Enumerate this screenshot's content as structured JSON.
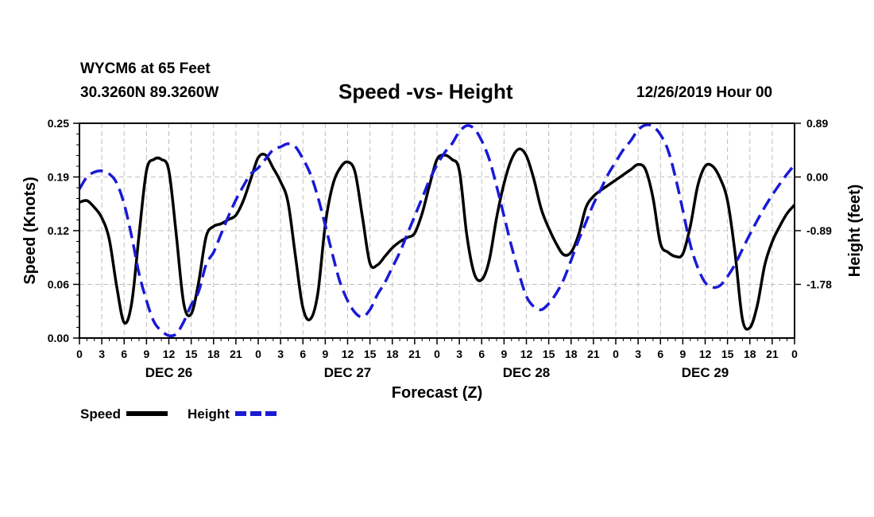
{
  "header": {
    "station": "WYCM6 at 65 Feet",
    "coordinates": "30.3260N 89.3260W",
    "title": "Speed -vs- Height",
    "run_time": "12/26/2019 Hour 00"
  },
  "chart_data": {
    "type": "line",
    "title": "Speed -vs- Height",
    "xlabel": "Forecast (Z)",
    "ylabel": "Speed (Knots)",
    "ylabel_right": "Height (feet)",
    "x_unit": "hours from 12/26/2019 00Z",
    "xlim": [
      0,
      96
    ],
    "ylim": [
      0,
      0.25
    ],
    "ylim_right": [
      -2.67,
      0.89
    ],
    "x_ticks": [
      0,
      3,
      6,
      9,
      12,
      15,
      18,
      21,
      24,
      27,
      30,
      33,
      36,
      39,
      42,
      45,
      48,
      51,
      54,
      57,
      60,
      63,
      66,
      69,
      72,
      75,
      78,
      81,
      84,
      87,
      90,
      93,
      96
    ],
    "x_tick_labels": [
      "0",
      "3",
      "6",
      "9",
      "12",
      "15",
      "18",
      "21",
      "0",
      "3",
      "6",
      "9",
      "12",
      "15",
      "18",
      "21",
      "0",
      "3",
      "6",
      "9",
      "12",
      "15",
      "18",
      "21",
      "0",
      "3",
      "6",
      "9",
      "12",
      "15",
      "18",
      "21",
      "0"
    ],
    "y_ticks": [
      0.0,
      0.0625,
      0.125,
      0.1875,
      0.25
    ],
    "y_tick_labels": [
      "0.00",
      "0.06",
      "0.12",
      "0.19",
      "0.25"
    ],
    "y_ticks_right": [
      0.89,
      0.0,
      -0.89,
      -1.78
    ],
    "y_tick_labels_right": [
      "0.89",
      "0.00",
      "-0.89",
      "-1.78"
    ],
    "date_labels": [
      {
        "x": 12,
        "label": "DEC 26"
      },
      {
        "x": 36,
        "label": "DEC 27"
      },
      {
        "x": 60,
        "label": "DEC 28"
      },
      {
        "x": 84,
        "label": "DEC 29"
      }
    ],
    "grid": true,
    "legend_position": "bottom-left",
    "series": [
      {
        "name": "Speed",
        "axis": "left",
        "color": "#000000",
        "dash": "solid",
        "points": [
          [
            0,
            0.158
          ],
          [
            1,
            0.16
          ],
          [
            2,
            0.152
          ],
          [
            3,
            0.14
          ],
          [
            4,
            0.115
          ],
          [
            5,
            0.06
          ],
          [
            6,
            0.018
          ],
          [
            7,
            0.04
          ],
          [
            8,
            0.12
          ],
          [
            9,
            0.195
          ],
          [
            10,
            0.208
          ],
          [
            11,
            0.208
          ],
          [
            12,
            0.195
          ],
          [
            13,
            0.12
          ],
          [
            14,
            0.04
          ],
          [
            15,
            0.028
          ],
          [
            16,
            0.065
          ],
          [
            17,
            0.118
          ],
          [
            18,
            0.13
          ],
          [
            19,
            0.133
          ],
          [
            20,
            0.138
          ],
          [
            21,
            0.143
          ],
          [
            22,
            0.16
          ],
          [
            23,
            0.185
          ],
          [
            24,
            0.21
          ],
          [
            25,
            0.213
          ],
          [
            26,
            0.198
          ],
          [
            27,
            0.182
          ],
          [
            28,
            0.158
          ],
          [
            29,
            0.095
          ],
          [
            30,
            0.035
          ],
          [
            31,
            0.022
          ],
          [
            32,
            0.052
          ],
          [
            33,
            0.132
          ],
          [
            34,
            0.178
          ],
          [
            35,
            0.198
          ],
          [
            36,
            0.205
          ],
          [
            37,
            0.193
          ],
          [
            38,
            0.14
          ],
          [
            39,
            0.087
          ],
          [
            40,
            0.085
          ],
          [
            41,
            0.095
          ],
          [
            42,
            0.105
          ],
          [
            43,
            0.112
          ],
          [
            44,
            0.117
          ],
          [
            45,
            0.122
          ],
          [
            46,
            0.145
          ],
          [
            47,
            0.178
          ],
          [
            48,
            0.208
          ],
          [
            49,
            0.213
          ],
          [
            50,
            0.208
          ],
          [
            51,
            0.195
          ],
          [
            52,
            0.12
          ],
          [
            53,
            0.075
          ],
          [
            54,
            0.068
          ],
          [
            55,
            0.09
          ],
          [
            56,
            0.14
          ],
          [
            57,
            0.18
          ],
          [
            58,
            0.208
          ],
          [
            59,
            0.22
          ],
          [
            60,
            0.212
          ],
          [
            61,
            0.185
          ],
          [
            62,
            0.15
          ],
          [
            63,
            0.128
          ],
          [
            64,
            0.11
          ],
          [
            65,
            0.097
          ],
          [
            66,
            0.1
          ],
          [
            67,
            0.12
          ],
          [
            68,
            0.152
          ],
          [
            69,
            0.165
          ],
          [
            70,
            0.172
          ],
          [
            71,
            0.178
          ],
          [
            72,
            0.184
          ],
          [
            73,
            0.19
          ],
          [
            74,
            0.196
          ],
          [
            75,
            0.202
          ],
          [
            76,
            0.196
          ],
          [
            77,
            0.163
          ],
          [
            78,
            0.11
          ],
          [
            79,
            0.1
          ],
          [
            80,
            0.095
          ],
          [
            81,
            0.098
          ],
          [
            82,
            0.13
          ],
          [
            83,
            0.177
          ],
          [
            84,
            0.2
          ],
          [
            85,
            0.2
          ],
          [
            86,
            0.186
          ],
          [
            87,
            0.16
          ],
          [
            88,
            0.1
          ],
          [
            89,
            0.022
          ],
          [
            90,
            0.012
          ],
          [
            91,
            0.038
          ],
          [
            92,
            0.085
          ],
          [
            93,
            0.112
          ],
          [
            94,
            0.13
          ],
          [
            95,
            0.145
          ],
          [
            96,
            0.155
          ]
        ]
      },
      {
        "name": "Height",
        "axis": "right",
        "color": "#1a1ad6",
        "dash": "dashed",
        "points": [
          [
            0,
            -0.2
          ],
          [
            1,
            0.0
          ],
          [
            2,
            0.08
          ],
          [
            3,
            0.1
          ],
          [
            4,
            0.05
          ],
          [
            5,
            -0.1
          ],
          [
            6,
            -0.45
          ],
          [
            7,
            -0.98
          ],
          [
            8,
            -1.6
          ],
          [
            9,
            -2.05
          ],
          [
            10,
            -2.4
          ],
          [
            11,
            -2.55
          ],
          [
            12,
            -2.63
          ],
          [
            13,
            -2.6
          ],
          [
            14,
            -2.4
          ],
          [
            15,
            -2.12
          ],
          [
            16,
            -1.9
          ],
          [
            17,
            -1.45
          ],
          [
            18,
            -1.25
          ],
          [
            19,
            -0.95
          ],
          [
            20,
            -0.65
          ],
          [
            21,
            -0.38
          ],
          [
            22,
            -0.15
          ],
          [
            23,
            0.05
          ],
          [
            24,
            0.15
          ],
          [
            25,
            0.3
          ],
          [
            26,
            0.45
          ],
          [
            27,
            0.5
          ],
          [
            28,
            0.55
          ],
          [
            29,
            0.5
          ],
          [
            30,
            0.3
          ],
          [
            31,
            0.05
          ],
          [
            32,
            -0.33
          ],
          [
            33,
            -0.8
          ],
          [
            34,
            -1.3
          ],
          [
            35,
            -1.75
          ],
          [
            36,
            -2.05
          ],
          [
            37,
            -2.25
          ],
          [
            38,
            -2.32
          ],
          [
            39,
            -2.2
          ],
          [
            40,
            -1.95
          ],
          [
            41,
            -1.75
          ],
          [
            42,
            -1.5
          ],
          [
            43,
            -1.25
          ],
          [
            44,
            -0.95
          ],
          [
            45,
            -0.65
          ],
          [
            46,
            -0.35
          ],
          [
            47,
            -0.05
          ],
          [
            48,
            0.2
          ],
          [
            49,
            0.4
          ],
          [
            50,
            0.55
          ],
          [
            51,
            0.75
          ],
          [
            52,
            0.85
          ],
          [
            53,
            0.8
          ],
          [
            54,
            0.6
          ],
          [
            55,
            0.3
          ],
          [
            56,
            -0.15
          ],
          [
            57,
            -0.65
          ],
          [
            58,
            -1.15
          ],
          [
            59,
            -1.6
          ],
          [
            60,
            -1.98
          ],
          [
            61,
            -2.15
          ],
          [
            62,
            -2.2
          ],
          [
            63,
            -2.1
          ],
          [
            64,
            -1.93
          ],
          [
            65,
            -1.7
          ],
          [
            66,
            -1.38
          ],
          [
            67,
            -1.05
          ],
          [
            68,
            -0.75
          ],
          [
            69,
            -0.45
          ],
          [
            70,
            -0.2
          ],
          [
            71,
            0.05
          ],
          [
            72,
            0.25
          ],
          [
            73,
            0.45
          ],
          [
            74,
            0.6
          ],
          [
            75,
            0.78
          ],
          [
            76,
            0.86
          ],
          [
            77,
            0.84
          ],
          [
            78,
            0.7
          ],
          [
            79,
            0.45
          ],
          [
            80,
            0.0
          ],
          [
            81,
            -0.55
          ],
          [
            82,
            -1.12
          ],
          [
            83,
            -1.5
          ],
          [
            84,
            -1.75
          ],
          [
            85,
            -1.83
          ],
          [
            86,
            -1.8
          ],
          [
            87,
            -1.65
          ],
          [
            88,
            -1.45
          ],
          [
            89,
            -1.2
          ],
          [
            90,
            -0.95
          ],
          [
            91,
            -0.72
          ],
          [
            92,
            -0.5
          ],
          [
            93,
            -0.3
          ],
          [
            94,
            -0.12
          ],
          [
            95,
            0.05
          ],
          [
            96,
            0.2
          ]
        ]
      }
    ],
    "legend": [
      {
        "label": "Speed",
        "color": "#000000",
        "dash": "solid"
      },
      {
        "label": "Height",
        "color": "#1a1ad6",
        "dash": "dashed"
      }
    ]
  }
}
